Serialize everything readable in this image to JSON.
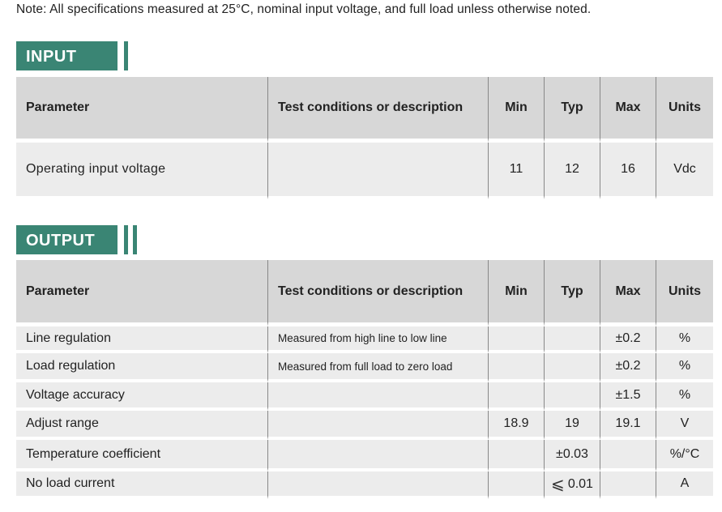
{
  "note": "Note: All specifications measured at 25°C, nominal input voltage, and full load unless otherwise noted.",
  "columns": {
    "parameter": "Parameter",
    "conditions": "Test conditions or description",
    "min": "Min",
    "typ": "Typ",
    "max": "Max",
    "units": "Units"
  },
  "input": {
    "title": "INPUT",
    "rows": [
      {
        "parameter": "Operating  input  voltage",
        "conditions": "",
        "min": "11",
        "typ": "12",
        "max": "16",
        "units": "Vdc"
      }
    ]
  },
  "output": {
    "title": "OUTPUT",
    "rows": [
      {
        "parameter": "Line regulation",
        "conditions": "Measured from high line to low line",
        "min": "",
        "typ": "",
        "max": "±0.2",
        "units": "%"
      },
      {
        "parameter": "Load regulation",
        "conditions": "Measured from full load to zero load",
        "min": "",
        "typ": "",
        "max": "±0.2",
        "units": "%"
      },
      {
        "parameter": "Voltage accuracy",
        "conditions": "",
        "min": "",
        "typ": "",
        "max": "±1.5",
        "units": "%"
      },
      {
        "parameter": "Adjust range",
        "conditions": "",
        "min": "18.9",
        "typ": "19",
        "max": "19.1",
        "units": "V"
      },
      {
        "parameter": "Temperature coefficient",
        "conditions": "",
        "min": "",
        "typ": "±0.03",
        "max": "",
        "units": "%/°C"
      },
      {
        "parameter": "No load current",
        "conditions": "",
        "min": "",
        "typ_symbol": "⩽",
        "typ": "0.01",
        "max": "",
        "units": "A"
      }
    ]
  }
}
